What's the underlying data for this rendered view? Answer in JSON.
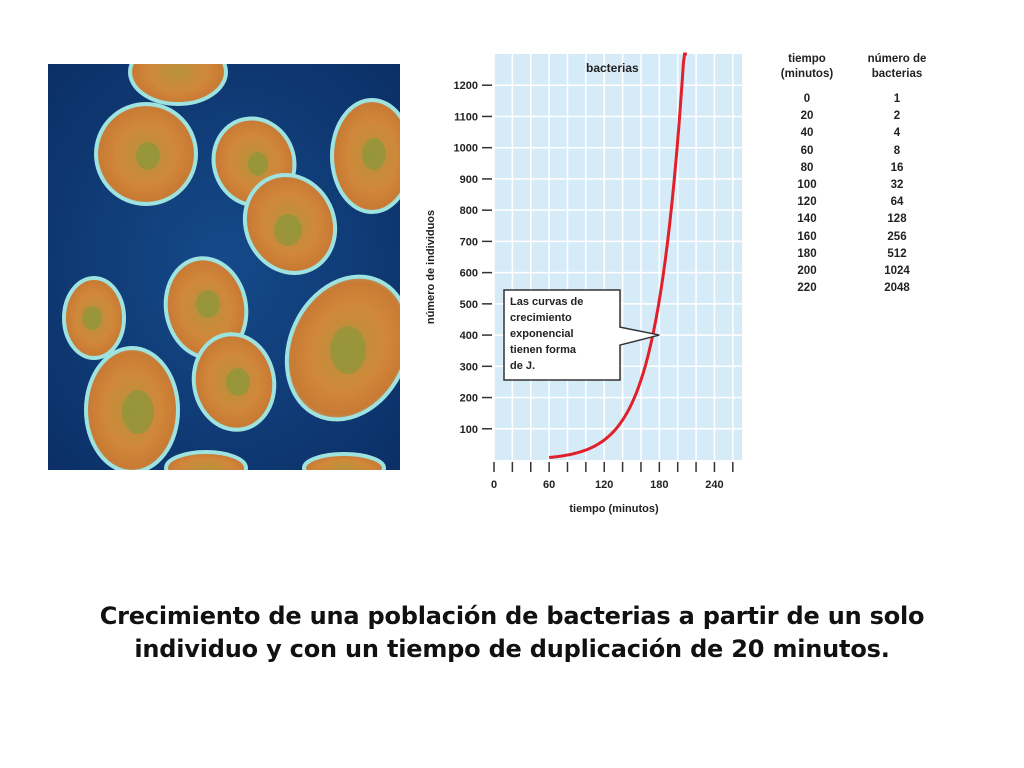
{
  "caption": "Crecimiento de una población de bacterias a partir de un solo individuo y con un tiempo de duplicación de 20 minutos.",
  "image": {
    "subject": "bacteria-micrograph",
    "colors": {
      "background": "#0f3a78",
      "cell": "#c98a3a",
      "halo": "#7fd0d8"
    }
  },
  "chart_data": {
    "type": "line",
    "series_label": "bacterias",
    "xlabel": "tiempo (minutos)",
    "ylabel": "número de individuos",
    "x_ticks": [
      0,
      60,
      120,
      180,
      240
    ],
    "y_ticks": [
      100,
      200,
      300,
      400,
      500,
      600,
      700,
      800,
      900,
      1000,
      1100,
      1200
    ],
    "xlim": [
      0,
      270
    ],
    "ylim": [
      0,
      1300
    ],
    "series": [
      {
        "x": [
          60,
          80,
          100,
          120,
          140,
          160,
          180,
          200,
          210
        ],
        "y": [
          8,
          16,
          32,
          64,
          128,
          256,
          512,
          1024,
          1448
        ],
        "color": "#e0202a"
      }
    ],
    "annotation": {
      "text": [
        "Las curvas de",
        "crecimiento",
        "exponencial",
        "tienen forma",
        "de J."
      ],
      "target": {
        "x": 180,
        "y": 400
      }
    },
    "background_color": "#d6ebf8",
    "grid_color": "#ffffff"
  },
  "table": {
    "headers": [
      "tiempo\n(minutos)",
      "número de\nbacterias"
    ],
    "rows": [
      [
        "0",
        "1"
      ],
      [
        "20",
        "2"
      ],
      [
        "40",
        "4"
      ],
      [
        "60",
        "8"
      ],
      [
        "80",
        "16"
      ],
      [
        "100",
        "32"
      ],
      [
        "120",
        "64"
      ],
      [
        "140",
        "128"
      ],
      [
        "160",
        "256"
      ],
      [
        "180",
        "512"
      ],
      [
        "200",
        "1024"
      ],
      [
        "220",
        "2048"
      ]
    ]
  }
}
